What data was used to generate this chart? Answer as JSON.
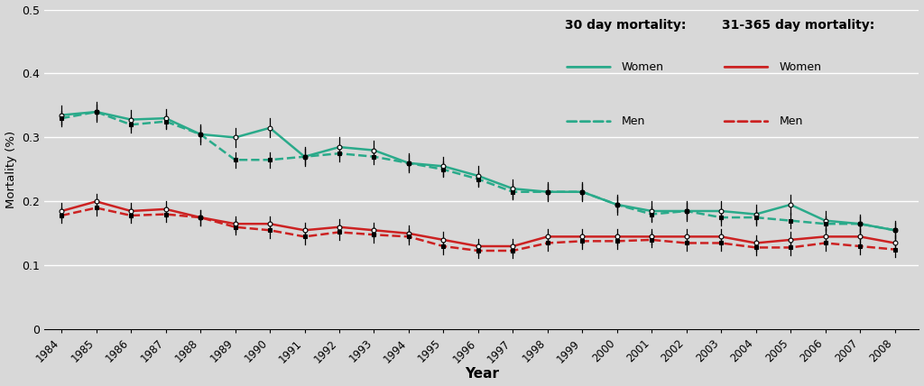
{
  "years": [
    1984,
    1985,
    1986,
    1987,
    1988,
    1989,
    1990,
    1991,
    1992,
    1993,
    1994,
    1995,
    1996,
    1997,
    1998,
    1999,
    2000,
    2001,
    2002,
    2003,
    2004,
    2005,
    2006,
    2007,
    2008
  ],
  "teal_color": "#2aaa8a",
  "red_color": "#cc2222",
  "background_color": "#d8d8d8",
  "ylabel": "Mortality (%)",
  "xlabel": "Year",
  "ylim": [
    0,
    0.5
  ],
  "yticks": [
    0,
    0.1,
    0.2,
    0.3,
    0.4,
    0.5
  ],
  "legend_title_30": "30 day mortality:",
  "legend_title_31": "31-365 day mortality:",
  "legend_30_women": "Women",
  "legend_30_men": "Men",
  "legend_31_women": "Women",
  "legend_31_men": "Men",
  "day30_women": [
    0.335,
    0.34,
    0.328,
    0.33,
    0.305,
    0.3,
    0.315,
    0.27,
    0.285,
    0.28,
    0.26,
    0.255,
    0.24,
    0.22,
    0.215,
    0.215,
    0.195,
    0.185,
    0.185,
    0.185,
    0.18,
    0.195,
    0.17,
    0.165,
    0.155
  ],
  "day30_women_lo": [
    0.32,
    0.325,
    0.313,
    0.315,
    0.29,
    0.285,
    0.3,
    0.255,
    0.27,
    0.265,
    0.245,
    0.24,
    0.225,
    0.205,
    0.2,
    0.2,
    0.18,
    0.17,
    0.17,
    0.17,
    0.165,
    0.18,
    0.155,
    0.15,
    0.14
  ],
  "day30_women_hi": [
    0.35,
    0.355,
    0.343,
    0.345,
    0.32,
    0.315,
    0.33,
    0.285,
    0.3,
    0.295,
    0.275,
    0.27,
    0.255,
    0.235,
    0.23,
    0.23,
    0.21,
    0.2,
    0.2,
    0.2,
    0.195,
    0.21,
    0.185,
    0.18,
    0.17
  ],
  "day30_men": [
    0.33,
    0.34,
    0.32,
    0.325,
    0.305,
    0.265,
    0.265,
    0.27,
    0.275,
    0.27,
    0.26,
    0.25,
    0.235,
    0.215,
    0.215,
    0.215,
    0.195,
    0.18,
    0.185,
    0.175,
    0.175,
    0.17,
    0.165,
    0.165,
    0.155
  ],
  "day30_men_lo": [
    0.318,
    0.328,
    0.308,
    0.313,
    0.293,
    0.253,
    0.253,
    0.258,
    0.263,
    0.258,
    0.248,
    0.238,
    0.223,
    0.203,
    0.203,
    0.203,
    0.183,
    0.168,
    0.173,
    0.163,
    0.163,
    0.158,
    0.153,
    0.153,
    0.143
  ],
  "day30_men_hi": [
    0.342,
    0.352,
    0.332,
    0.337,
    0.317,
    0.277,
    0.277,
    0.282,
    0.287,
    0.282,
    0.272,
    0.262,
    0.247,
    0.227,
    0.227,
    0.227,
    0.207,
    0.192,
    0.197,
    0.187,
    0.187,
    0.182,
    0.177,
    0.177,
    0.167
  ],
  "day31_365_women": [
    0.185,
    0.2,
    0.185,
    0.188,
    0.175,
    0.165,
    0.165,
    0.155,
    0.16,
    0.155,
    0.15,
    0.14,
    0.13,
    0.13,
    0.145,
    0.145,
    0.145,
    0.145,
    0.145,
    0.145,
    0.135,
    0.14,
    0.145,
    0.145,
    0.135
  ],
  "day31_365_women_lo": [
    0.173,
    0.188,
    0.173,
    0.175,
    0.163,
    0.153,
    0.153,
    0.143,
    0.148,
    0.143,
    0.138,
    0.128,
    0.118,
    0.118,
    0.133,
    0.133,
    0.133,
    0.133,
    0.133,
    0.133,
    0.123,
    0.128,
    0.133,
    0.133,
    0.123
  ],
  "day31_365_women_hi": [
    0.197,
    0.212,
    0.197,
    0.201,
    0.187,
    0.177,
    0.177,
    0.167,
    0.172,
    0.167,
    0.162,
    0.152,
    0.142,
    0.142,
    0.157,
    0.157,
    0.157,
    0.157,
    0.157,
    0.157,
    0.147,
    0.152,
    0.157,
    0.157,
    0.147
  ],
  "day31_365_men": [
    0.178,
    0.19,
    0.178,
    0.18,
    0.175,
    0.16,
    0.155,
    0.145,
    0.152,
    0.148,
    0.145,
    0.13,
    0.123,
    0.123,
    0.135,
    0.138,
    0.138,
    0.14,
    0.135,
    0.135,
    0.128,
    0.128,
    0.135,
    0.13,
    0.125
  ],
  "day31_365_men_lo": [
    0.166,
    0.178,
    0.166,
    0.168,
    0.163,
    0.148,
    0.143,
    0.133,
    0.14,
    0.136,
    0.133,
    0.118,
    0.111,
    0.111,
    0.123,
    0.126,
    0.126,
    0.128,
    0.123,
    0.123,
    0.116,
    0.116,
    0.123,
    0.118,
    0.113
  ],
  "day31_365_men_hi": [
    0.19,
    0.202,
    0.19,
    0.192,
    0.187,
    0.172,
    0.167,
    0.157,
    0.164,
    0.16,
    0.157,
    0.142,
    0.135,
    0.135,
    0.147,
    0.15,
    0.15,
    0.152,
    0.147,
    0.147,
    0.14,
    0.14,
    0.147,
    0.142,
    0.137
  ]
}
